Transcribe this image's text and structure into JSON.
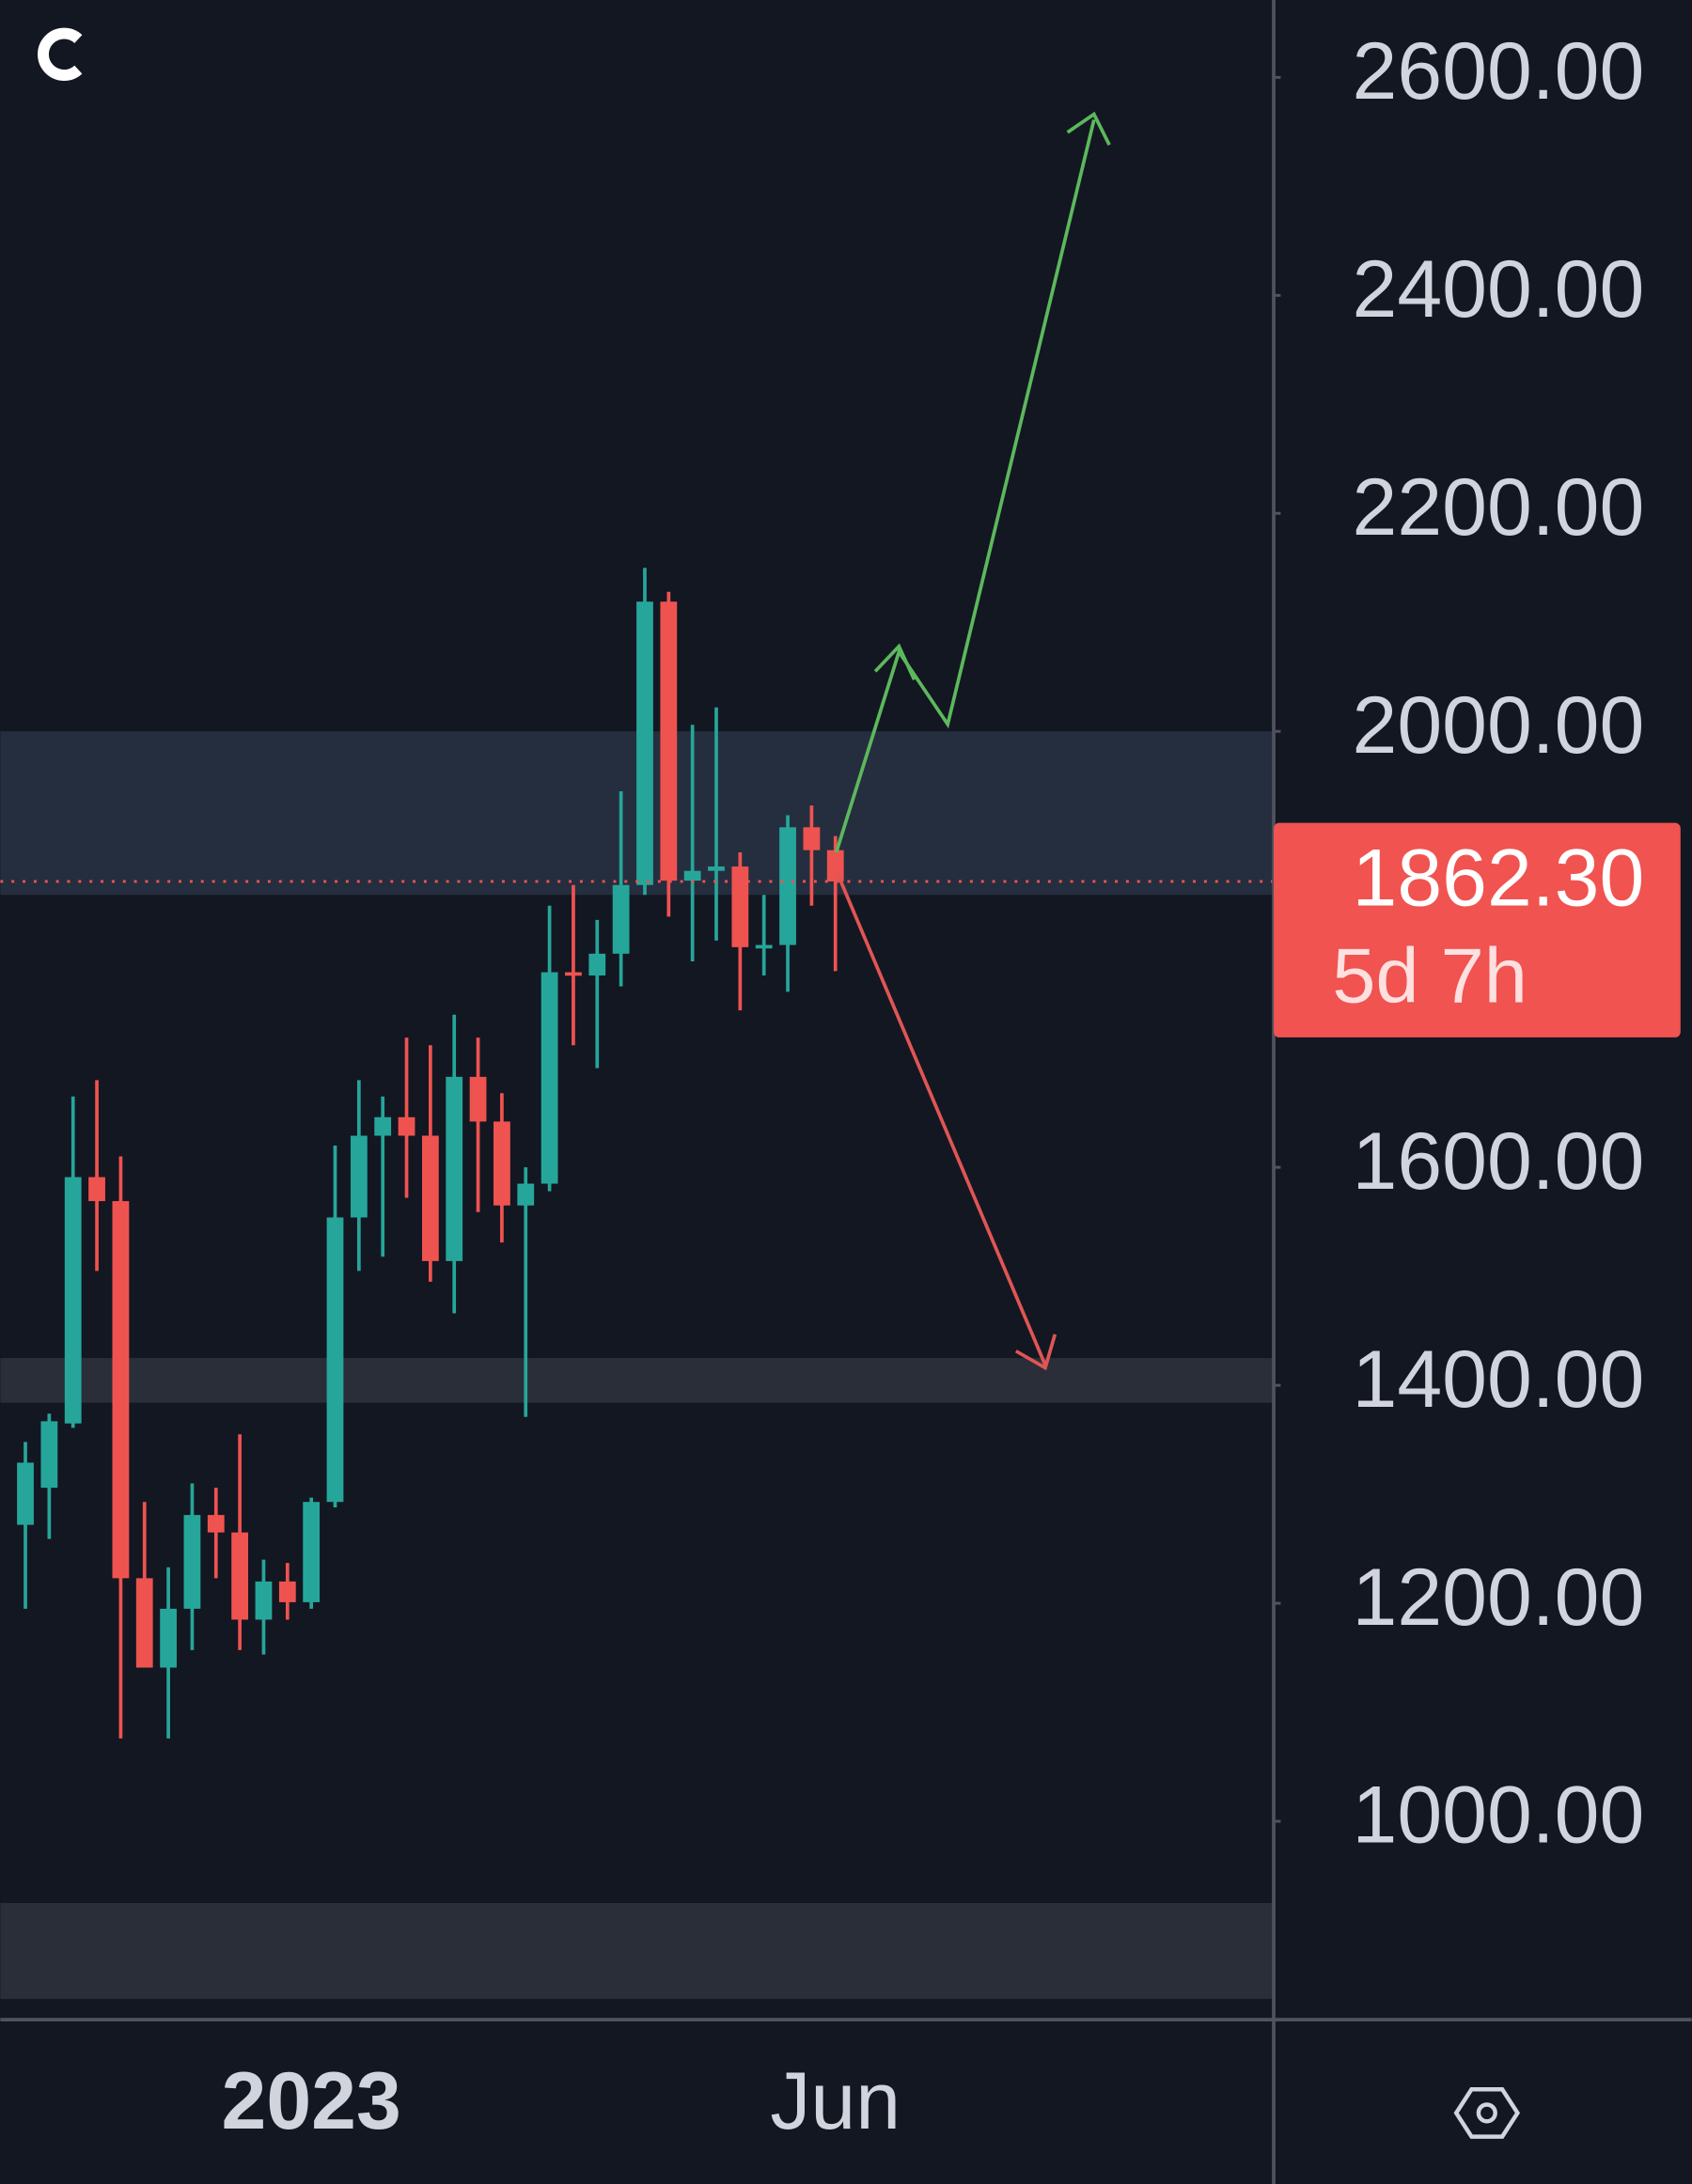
{
  "chart_data": {
    "type": "candlestick",
    "categories": [
      null,
      null,
      null,
      null,
      null,
      null,
      null,
      null,
      null,
      null,
      null,
      null,
      "2023",
      null,
      null,
      null,
      null,
      null,
      null,
      null,
      null,
      null,
      null,
      null,
      null,
      null,
      null,
      null,
      null,
      null,
      null,
      null,
      null,
      null,
      "Jun"
    ],
    "series": [
      {
        "up_color": "#26a69a",
        "down_color": "#ef5350",
        "open": [
          1272,
          1306,
          1365,
          1591,
          1569,
          1223,
          1141,
          1195,
          1281,
          1265,
          1185,
          1220,
          1201,
          1293,
          1554,
          1629,
          1646,
          1629,
          1514,
          1683,
          1642,
          1565,
          1585,
          1779,
          1776,
          1796,
          1859,
          2119,
          1863,
          1872,
          1876,
          1802,
          1804,
          1912,
          1891
        ],
        "high": [
          1348,
          1374,
          1665,
          1680,
          1610,
          1293,
          1233,
          1310,
          1306,
          1355,
          1240,
          1237,
          1297,
          1620,
          1680,
          1665,
          1719,
          1712,
          1740,
          1719,
          1668,
          1600,
          1840,
          1859,
          1827,
          1945,
          2150,
          2128,
          2006,
          2022,
          1889,
          1850,
          1923,
          1932,
          1904
        ],
        "low": [
          1195,
          1259,
          1361,
          1505,
          1076,
          1141,
          1076,
          1157,
          1223,
          1157,
          1153,
          1185,
          1195,
          1288,
          1505,
          1518,
          1572,
          1495,
          1466,
          1559,
          1531,
          1371,
          1578,
          1712,
          1691,
          1766,
          1850,
          1830,
          1789,
          1808,
          1744,
          1776,
          1761,
          1840,
          1780
        ],
        "close": [
          1329,
          1367,
          1591,
          1569,
          1223,
          1141,
          1195,
          1281,
          1265,
          1185,
          1220,
          1201,
          1293,
          1554,
          1629,
          1646,
          1629,
          1514,
          1683,
          1642,
          1565,
          1585,
          1779,
          1776,
          1796,
          1859,
          2119,
          1863,
          1872,
          1876,
          1802,
          1804,
          1912,
          1891,
          1862.3
        ]
      }
    ],
    "ylim": [
      818,
      2671
    ],
    "yticks": [
      {
        "value": 2600,
        "label": "2600.00"
      },
      {
        "value": 2400,
        "label": "2400.00"
      },
      {
        "value": 2200,
        "label": "2200.00"
      },
      {
        "value": 2000,
        "label": "2000.00"
      },
      {
        "value": 1600,
        "label": "1600.00"
      },
      {
        "value": 1400,
        "label": "1400.00"
      },
      {
        "value": 1200,
        "label": "1200.00"
      },
      {
        "value": 1000,
        "label": "1000.00"
      }
    ],
    "zones": [
      {
        "range": [
          1850,
          2000
        ],
        "color": "#252e3f"
      },
      {
        "range": [
          1384,
          1425
        ],
        "color": "#2a2e39"
      },
      {
        "range": [
          837,
          925
        ],
        "color": "#2a2e39"
      }
    ],
    "last_price": {
      "value": 1862.3,
      "label": "1862.30",
      "color": "#f05350"
    },
    "countdown": "5d 7h"
  }
}
